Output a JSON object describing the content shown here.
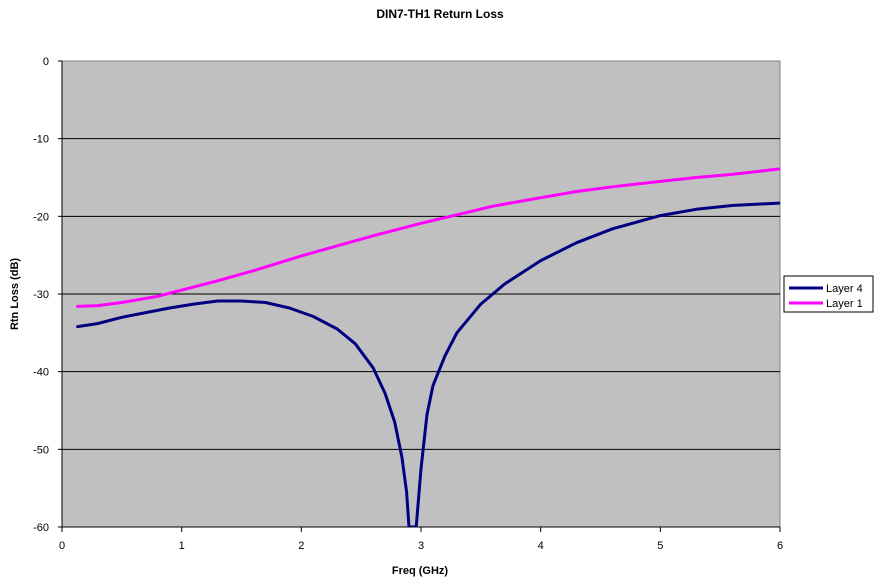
{
  "chart_data": {
    "type": "line",
    "title": "DIN7-TH1 Return Loss",
    "xlabel": "Freq (GHz)",
    "ylabel": "Rtn Loss (dB)",
    "xlim": [
      0,
      6
    ],
    "ylim": [
      -60,
      0
    ],
    "x_ticks": [
      0,
      1,
      2,
      3,
      4,
      5,
      6
    ],
    "x_tick_labels": [
      "0",
      "1",
      "2",
      "3",
      "4",
      "5",
      "6"
    ],
    "y_ticks": [
      0,
      -10,
      -20,
      -30,
      -40,
      -50,
      -60
    ],
    "y_tick_labels": [
      "0",
      "-10",
      "-20",
      "-30",
      "-40",
      "-50",
      "-60"
    ],
    "grid": "horizontal major",
    "plot_background": "#c0c0c0",
    "legend_position": "right",
    "series": [
      {
        "name": "Layer 4",
        "color": "#000080",
        "x": [
          0.13,
          0.3,
          0.5,
          0.7,
          0.9,
          1.1,
          1.3,
          1.5,
          1.7,
          1.9,
          2.1,
          2.3,
          2.45,
          2.6,
          2.7,
          2.78,
          2.84,
          2.88,
          2.9,
          2.92,
          2.96,
          3.0,
          3.05,
          3.1,
          3.2,
          3.3,
          3.5,
          3.7,
          4.0,
          4.3,
          4.6,
          5.0,
          5.3,
          5.6,
          5.99
        ],
        "y": [
          -34.2,
          -33.8,
          -33.0,
          -32.4,
          -31.8,
          -31.3,
          -30.9,
          -30.9,
          -31.1,
          -31.8,
          -32.9,
          -34.5,
          -36.4,
          -39.5,
          -42.8,
          -46.5,
          -51.0,
          -55.5,
          -60.0,
          -60.0,
          -60.0,
          -52.5,
          -45.5,
          -41.8,
          -38.0,
          -35.0,
          -31.3,
          -28.7,
          -25.7,
          -23.4,
          -21.6,
          -19.9,
          -19.1,
          -18.6,
          -18.3
        ]
      },
      {
        "name": "Layer 1",
        "color": "#ff00ff",
        "x": [
          0.13,
          0.3,
          0.5,
          0.8,
          1.0,
          1.3,
          1.6,
          2.0,
          2.3,
          2.6,
          3.0,
          3.3,
          3.6,
          4.0,
          4.3,
          4.6,
          5.0,
          5.3,
          5.6,
          5.99
        ],
        "y": [
          -31.6,
          -31.5,
          -31.1,
          -30.3,
          -29.5,
          -28.3,
          -27.0,
          -25.1,
          -23.8,
          -22.5,
          -20.9,
          -19.8,
          -18.7,
          -17.6,
          -16.8,
          -16.2,
          -15.5,
          -15.0,
          -14.6,
          -13.9
        ]
      }
    ]
  }
}
